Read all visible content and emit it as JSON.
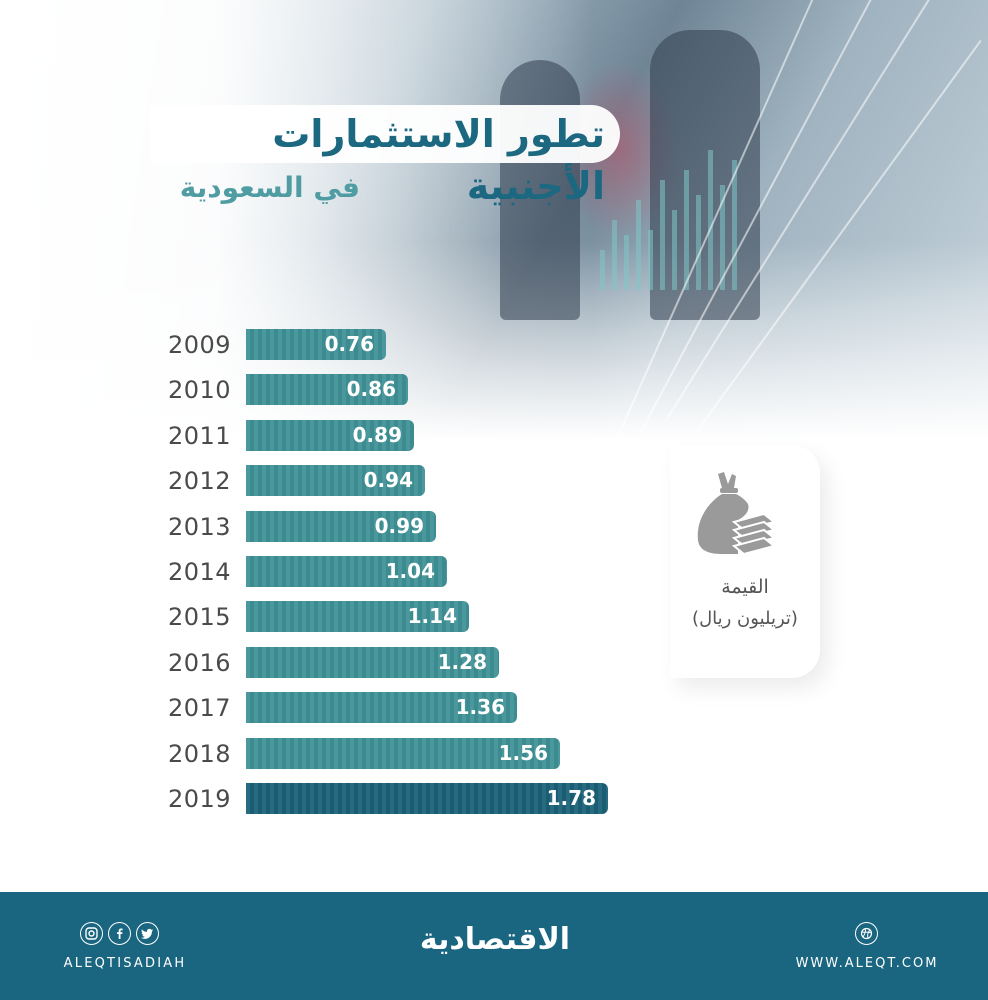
{
  "header": {
    "title": "تطور الاستثمارات الأجنبية",
    "subtitle": "في السعودية"
  },
  "legend": {
    "icon": "money-bag-icon",
    "label": "القيمة",
    "unit": "(تريليون ريال)"
  },
  "colors": {
    "bar": "#3f9297",
    "bar_highlight": "#1b6279",
    "title": "#1b6880",
    "subtitle": "#4f9ca3",
    "footer": "#1a6680"
  },
  "chart_data": {
    "type": "bar",
    "orientation": "horizontal",
    "title": "تطور الاستثمارات الأجنبية في السعودية",
    "xlabel": "",
    "ylabel": "",
    "unit": "القيمة (تريليون ريال)",
    "categories": [
      "2009",
      "2010",
      "2011",
      "2012",
      "2013",
      "2014",
      "2015",
      "2016",
      "2017",
      "2018",
      "2019"
    ],
    "values": [
      0.76,
      0.86,
      0.89,
      0.94,
      0.99,
      1.04,
      1.14,
      1.28,
      1.36,
      1.56,
      1.78
    ],
    "labels": [
      "0.76",
      "0.86",
      "0.89",
      "0.94",
      "0.99",
      "1.04",
      "1.14",
      "1.28",
      "1.36",
      "1.56",
      "1.78"
    ],
    "highlight_index": 10,
    "grid": false,
    "legend_position": "right",
    "xlim": [
      0,
      2
    ]
  },
  "footer": {
    "social_icons": [
      "instagram-icon",
      "facebook-icon",
      "twitter-icon"
    ],
    "handle": "ALEQTISADIAH",
    "brand": "الاقتصادية",
    "web_icon": "globe-icon",
    "website": "WWW.ALEQT.COM"
  }
}
